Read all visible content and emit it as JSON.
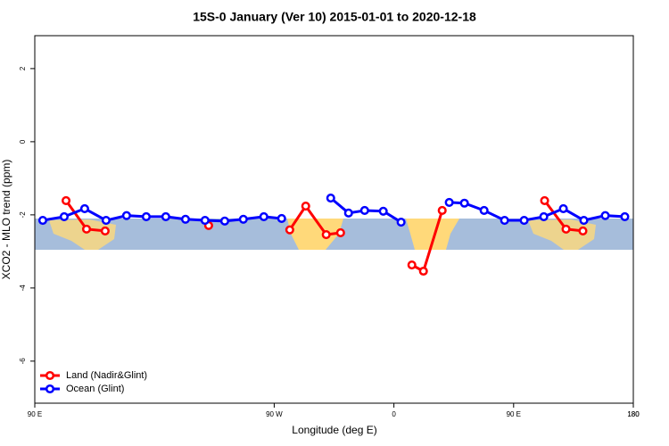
{
  "chart_data": {
    "type": "line",
    "title": "15S-0 January (Ver 10)   2015-01-01 to 2020-12-18",
    "x_label": "Longitude (deg E)",
    "y_label": "XCO2 - MLO trend (ppm)",
    "xlim": [
      90,
      540
    ],
    "ylim": [
      -7.15,
      2.9
    ],
    "xticks": [
      {
        "value": 90,
        "label": "90 E"
      },
      180,
      {
        "value": 270,
        "label": "90 W"
      },
      0,
      {
        "value": 450,
        "label": "90 E"
      },
      {
        "value": 540,
        "label": "180"
      }
    ],
    "yticks": [
      2,
      0,
      -2,
      -4,
      -6
    ],
    "legend": "bottomleft",
    "series": [
      {
        "name": "Land (Nadir&Glint)",
        "color": "#ff0000",
        "x": [
          113.5,
          128.9,
          142.9,
          null,
          220.7,
          null,
          281.7,
          293.7,
          309.1,
          319.9,
          null,
          373.5,
          382.2,
          396.3,
          null,
          473.3,
          489.4,
          502.1
        ],
        "values": [
          -1.61,
          -2.39,
          -2.44,
          null,
          -2.29,
          null,
          -2.41,
          -1.76,
          -2.54,
          -2.49,
          null,
          -3.37,
          -3.54,
          -1.88,
          null,
          -1.61,
          -2.39,
          -2.44
        ]
      },
      {
        "name": "Ocean (Glint)",
        "color": "#0000ff",
        "x": [
          96.0,
          112.1,
          127.5,
          143.6,
          159.0,
          173.8,
          188.5,
          203.3,
          218.0,
          232.8,
          246.8,
          262.2,
          275.6,
          null,
          312.5,
          325.9,
          338.0,
          352.0,
          365.4,
          null,
          401.6,
          413.0,
          427.8,
          443.2,
          457.9,
          472.7,
          487.4,
          502.8,
          518.9,
          533.6
        ],
        "values": [
          -2.15,
          -2.05,
          -1.83,
          -2.15,
          -2.02,
          -2.05,
          -2.05,
          -2.12,
          -2.15,
          -2.17,
          -2.12,
          -2.05,
          -2.1,
          null,
          -1.54,
          -1.95,
          -1.88,
          -1.9,
          -2.2,
          null,
          -1.66,
          -1.68,
          -1.88,
          -2.15,
          -2.15,
          -2.05,
          -1.83,
          -2.15,
          -2.02,
          -2.05
        ]
      }
    ]
  }
}
